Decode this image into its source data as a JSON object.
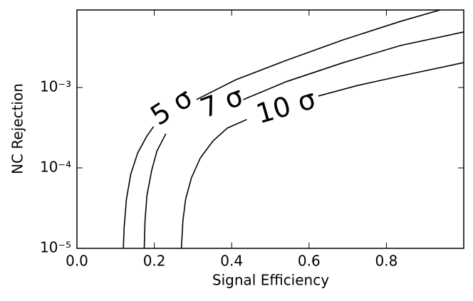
{
  "chart_data": {
    "type": "line",
    "x_label": "Signal Efficiency",
    "y_label": "NC Rejection",
    "xlim": [
      0,
      1.0
    ],
    "xticks": [
      {
        "value": 0,
        "label": "0.0"
      },
      0.2,
      0.4,
      0.6,
      0.8
    ],
    "ylim": [
      1e-05,
      0.0092
    ],
    "yticks": [
      {
        "value": 1e-05,
        "label": "10⁻⁵"
      },
      {
        "value": 0.0001,
        "label": "10⁻⁴"
      },
      {
        "value": 0.001,
        "label": "10⁻³"
      }
    ],
    "y_log": true,
    "series": [
      {
        "name": "5 σ",
        "color": "#000000",
        "x": [
          0.12,
          0.122,
          0.128,
          0.139,
          0.157,
          0.18,
          0.198,
          0.25,
          0.309,
          0.411,
          0.541,
          0.689,
          0.837,
          0.939
        ],
        "values": [
          1e-05,
          1.81e-05,
          4.08e-05,
          8.32e-05,
          0.000153,
          0.000245,
          0.000326,
          null,
          0.000707,
          0.00125,
          0.00217,
          0.00392,
          0.00665,
          0.0092
        ]
      },
      {
        "name": "7 σ",
        "color": "#000000",
        "x": [
          0.174,
          0.176,
          0.181,
          0.193,
          0.207,
          0.23,
          0.28,
          0.43,
          0.541,
          0.689,
          0.837,
          1.0
        ],
        "values": [
          1e-05,
          2.21e-05,
          4.52e-05,
          9.22e-05,
          0.000163,
          0.000266,
          null,
          0.000707,
          0.00118,
          0.00204,
          0.00333,
          0.0049
        ]
      },
      {
        "name": "10 σ",
        "color": "#000000",
        "x": [
          0.27,
          0.274,
          0.281,
          0.296,
          0.319,
          0.352,
          0.389,
          0.439,
          0.5,
          0.624,
          0.726,
          0.837,
          1.0
        ],
        "values": [
          1e-05,
          2.21e-05,
          4.08e-05,
          7.52e-05,
          0.000133,
          0.000217,
          0.000313,
          0.0004,
          null,
          0.000783,
          0.00106,
          0.00139,
          0.00204
        ]
      }
    ]
  }
}
